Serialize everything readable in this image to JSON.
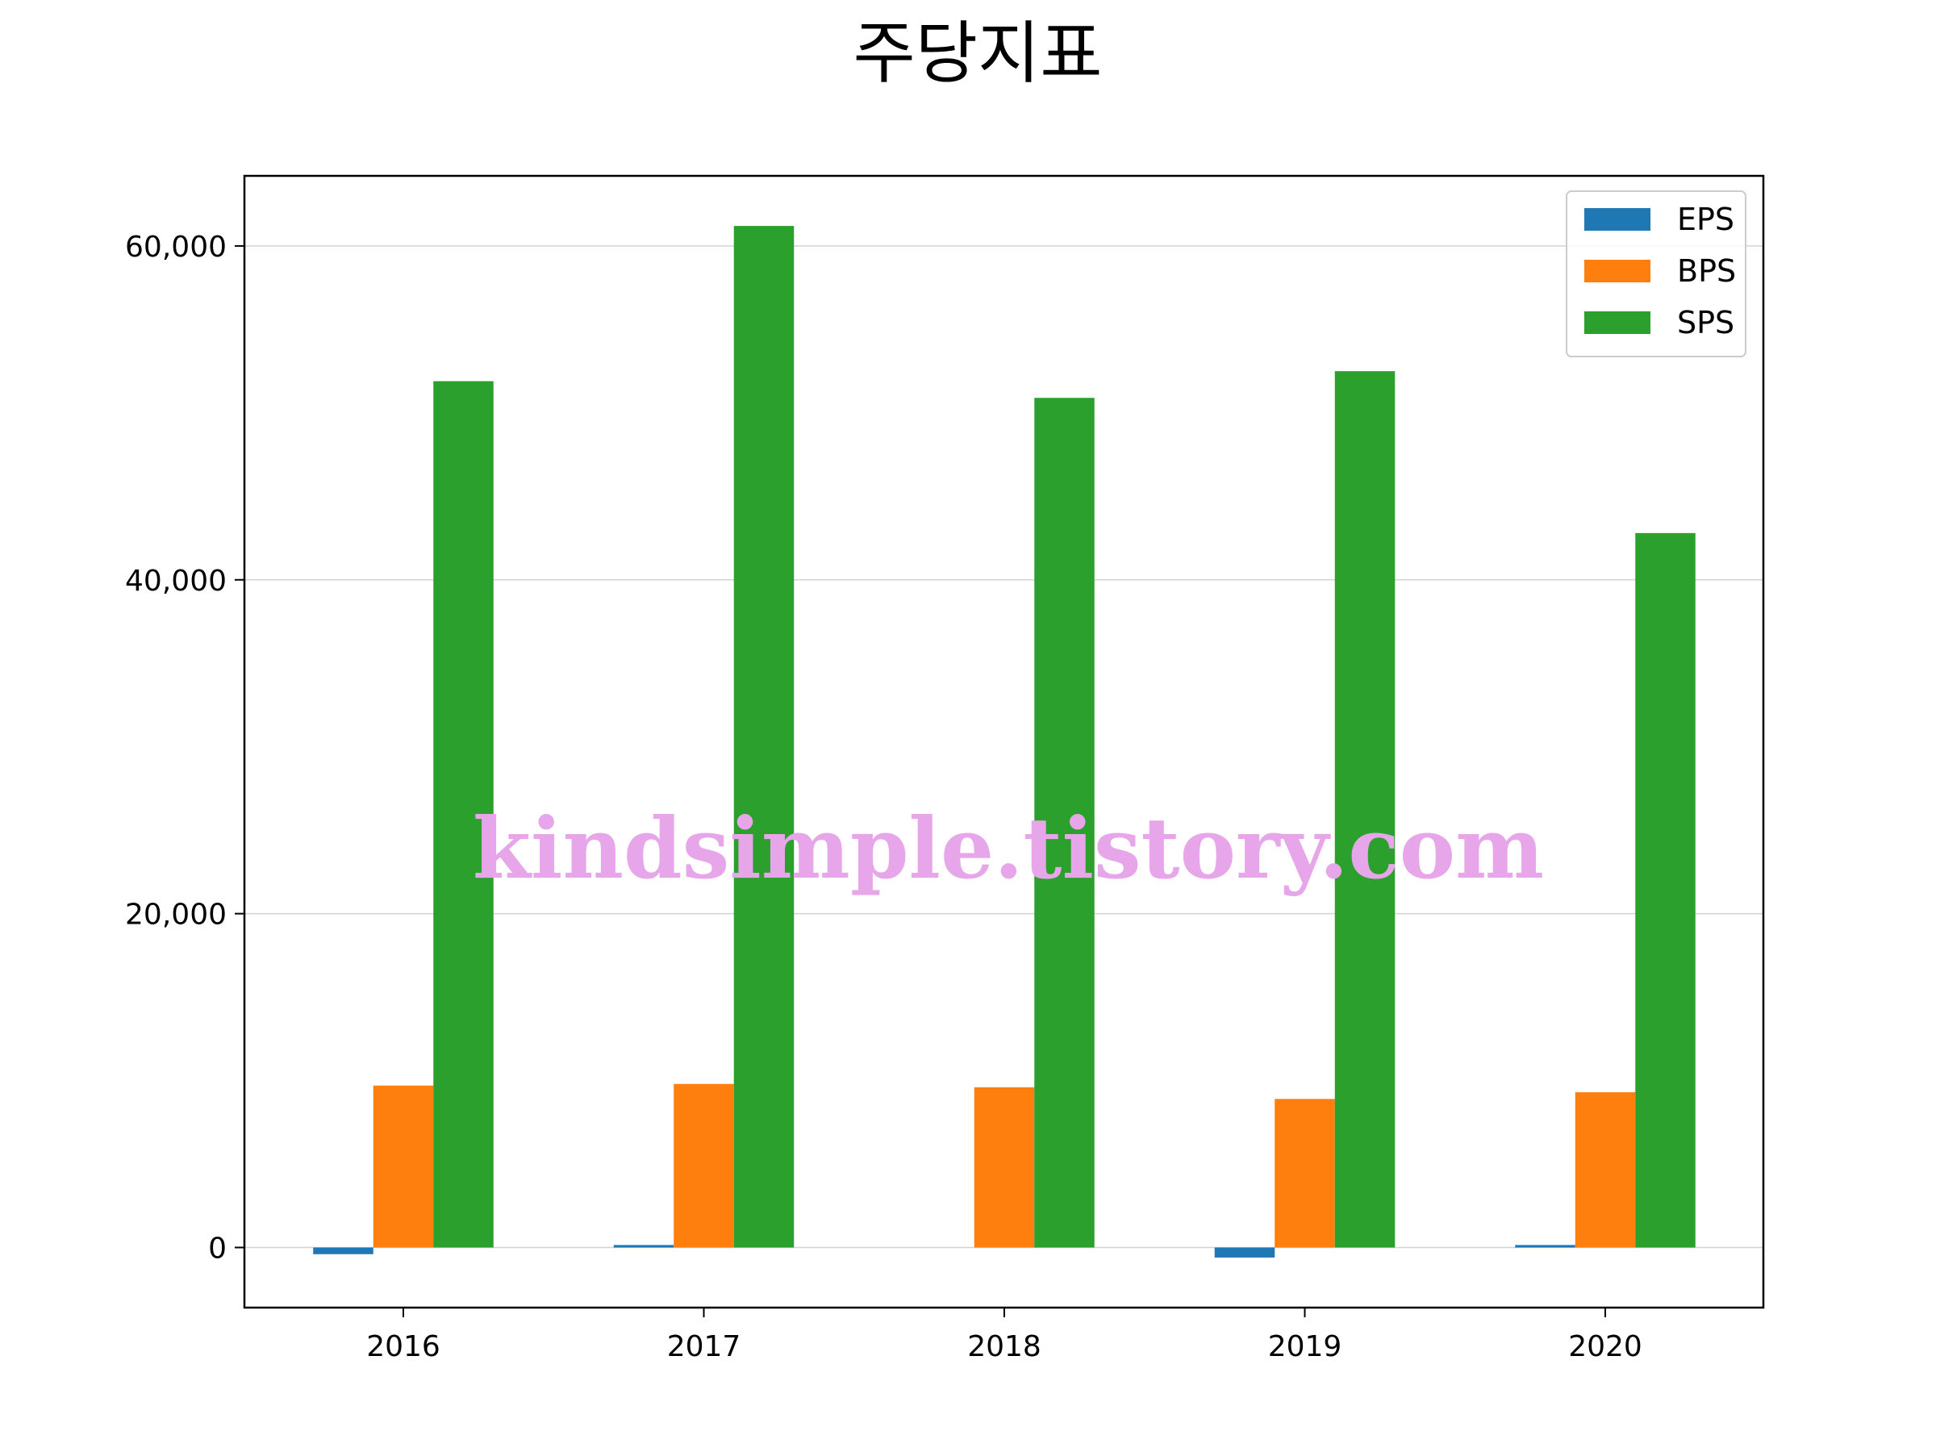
{
  "chart_data": {
    "type": "bar",
    "title": "주당지표",
    "xlabel": "",
    "ylabel": "",
    "categories": [
      "2016",
      "2017",
      "2018",
      "2019",
      "2020"
    ],
    "series": [
      {
        "name": "EPS",
        "color": "#1f77b4",
        "values": [
          -400,
          150,
          0,
          -600,
          150
        ]
      },
      {
        "name": "BPS",
        "color": "#ff7f0e",
        "values": [
          9700,
          9800,
          9600,
          8900,
          9300
        ]
      },
      {
        "name": "SPS",
        "color": "#2ca02c",
        "values": [
          51900,
          61200,
          50900,
          52500,
          42800
        ]
      }
    ],
    "ylim": [
      -3600,
      64200
    ],
    "yticks": [
      0,
      20000,
      40000,
      60000
    ],
    "ytick_labels": [
      "0",
      "20,000",
      "40,000",
      "60,000"
    ],
    "grid": {
      "y": true,
      "x": false
    },
    "legend_position": "top-right",
    "watermark": "kindsimple.tistory.com"
  }
}
